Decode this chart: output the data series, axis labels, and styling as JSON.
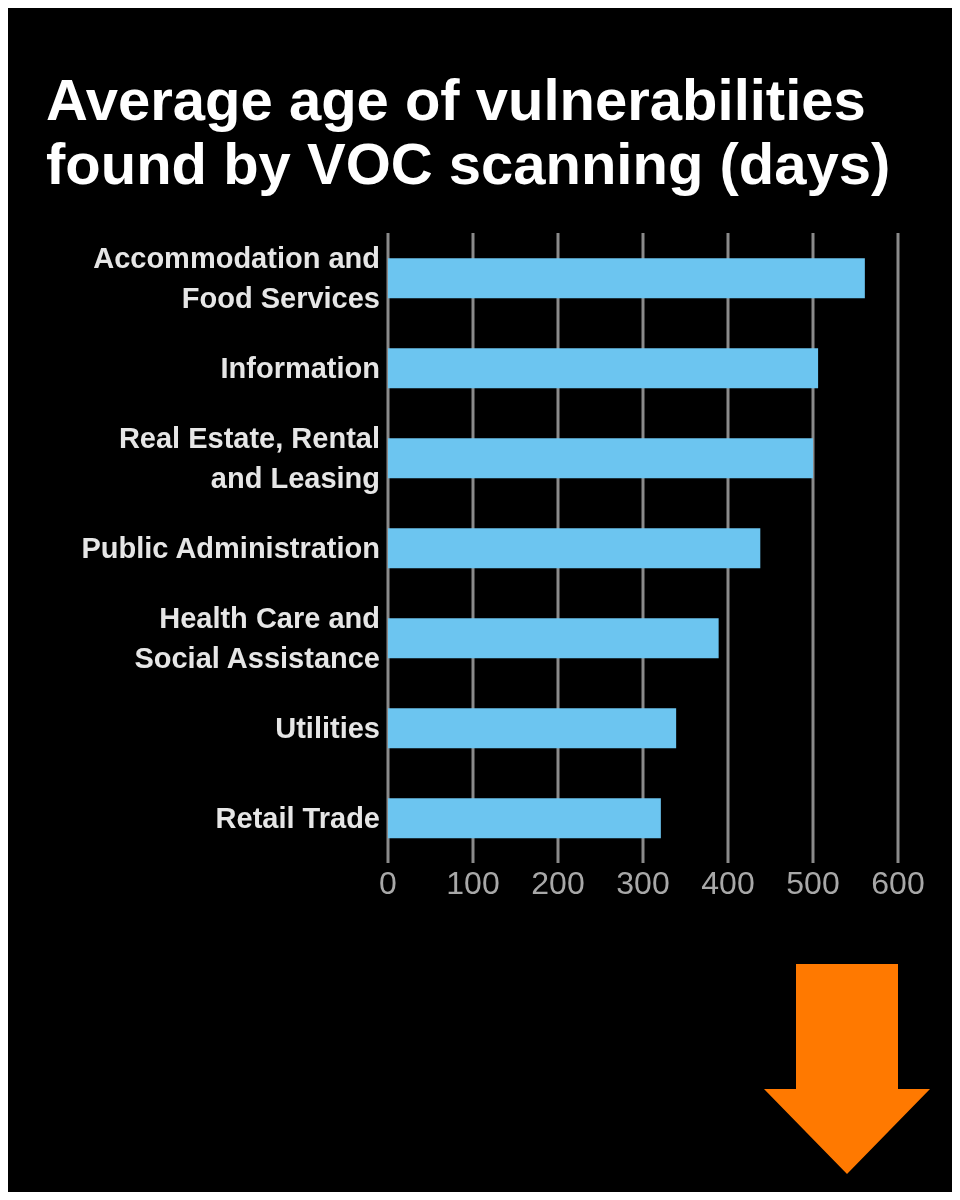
{
  "chart_data": {
    "type": "bar",
    "orientation": "horizontal",
    "title": "Average age of vulnerabilities found by VOC scanning (days)",
    "categories": [
      "Accommodation and Food Services",
      "Information",
      "Real Estate, Rental and Leasing",
      "Public Administration",
      "Health Care and Social Assistance",
      "Utilities",
      "Retail Trade"
    ],
    "values": [
      561,
      506,
      500,
      438,
      389,
      339,
      321
    ],
    "color": "#6cc5f0",
    "xlim": [
      0,
      600
    ],
    "xticks": [
      0,
      100,
      200,
      300,
      400,
      500,
      600
    ],
    "grid": "x"
  }
}
